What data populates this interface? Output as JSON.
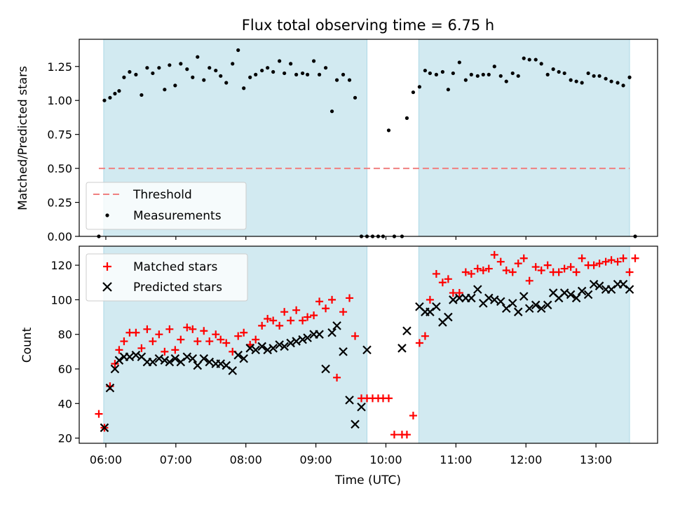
{
  "title": "Flux total observing time = 6.75 h",
  "xlabel": "Time (UTC)",
  "x_ticks": [
    "06:00",
    "07:00",
    "08:00",
    "09:00",
    "10:00",
    "11:00",
    "12:00",
    "13:00"
  ],
  "colors": {
    "shade": "#add8e6",
    "threshold": "#f08080",
    "measurement": "#000000",
    "matched": "#ff0000",
    "predicted": "#000000"
  },
  "chart_data": [
    {
      "type": "scatter",
      "ylabel": "Matched/Predicted stars",
      "xlim": [
        5.62,
        13.88
      ],
      "ylim": [
        0,
        1.45
      ],
      "y_ticks": [
        "0.00",
        "0.25",
        "0.50",
        "0.75",
        "1.00",
        "1.25"
      ],
      "y_tick_values": [
        0,
        0.25,
        0.5,
        0.75,
        1.0,
        1.25
      ],
      "grid": false,
      "legend_position": "bottom-left",
      "shaded_intervals": [
        [
          5.97,
          9.73
        ],
        [
          10.47,
          13.48
        ]
      ],
      "threshold": {
        "name": "Threshold",
        "y": 0.5,
        "x_range": [
          5.9,
          13.48
        ]
      },
      "series": [
        {
          "name": "Measurements",
          "marker": "dot",
          "x": [
            5.9,
            5.98,
            6.06,
            6.13,
            6.19,
            6.26,
            6.34,
            6.43,
            6.51,
            6.59,
            6.67,
            6.76,
            6.84,
            6.91,
            6.99,
            7.07,
            7.16,
            7.24,
            7.31,
            7.4,
            7.48,
            7.57,
            7.64,
            7.72,
            7.81,
            7.89,
            7.97,
            8.06,
            8.14,
            8.23,
            8.31,
            8.39,
            8.48,
            8.55,
            8.64,
            8.72,
            8.81,
            8.88,
            8.97,
            9.05,
            9.14,
            9.23,
            9.3,
            9.39,
            9.48,
            9.56,
            9.65,
            9.73,
            9.81,
            9.89,
            9.96,
            10.04,
            10.12,
            10.23,
            10.3,
            10.39,
            10.48,
            10.56,
            10.63,
            10.72,
            10.81,
            10.89,
            10.96,
            11.05,
            11.14,
            11.22,
            11.31,
            11.39,
            11.47,
            11.55,
            11.64,
            11.72,
            11.81,
            11.89,
            11.97,
            12.05,
            12.14,
            12.22,
            12.31,
            12.39,
            12.47,
            12.55,
            12.64,
            12.72,
            12.8,
            12.89,
            12.97,
            13.05,
            13.14,
            13.22,
            13.31,
            13.39,
            13.48,
            13.56
          ],
          "y": [
            0.0,
            1.0,
            1.02,
            1.05,
            1.07,
            1.17,
            1.21,
            1.19,
            1.04,
            1.24,
            1.2,
            1.24,
            1.08,
            1.26,
            1.11,
            1.27,
            1.23,
            1.17,
            1.32,
            1.15,
            1.24,
            1.22,
            1.18,
            1.13,
            1.27,
            1.37,
            1.09,
            1.17,
            1.19,
            1.22,
            1.24,
            1.21,
            1.29,
            1.2,
            1.27,
            1.19,
            1.2,
            1.19,
            1.29,
            1.19,
            1.24,
            0.92,
            1.15,
            1.19,
            1.15,
            1.02,
            0.0,
            0.0,
            0.0,
            0.0,
            0.0,
            0.78,
            0.0,
            0.0,
            0.87,
            1.06,
            1.1,
            1.22,
            1.2,
            1.19,
            1.21,
            1.08,
            1.2,
            1.28,
            1.15,
            1.19,
            1.18,
            1.19,
            1.19,
            1.25,
            1.18,
            1.14,
            1.2,
            1.18,
            1.31,
            1.3,
            1.3,
            1.27,
            1.19,
            1.23,
            1.21,
            1.2,
            1.15,
            1.14,
            1.13,
            1.2,
            1.18,
            1.18,
            1.16,
            1.14,
            1.13,
            1.11,
            1.17,
            0.0
          ]
        }
      ]
    },
    {
      "type": "scatter",
      "ylabel": "Count",
      "xlim": [
        5.62,
        13.88
      ],
      "ylim": [
        17,
        131
      ],
      "y_ticks": [
        "20",
        "40",
        "60",
        "80",
        "100",
        "120"
      ],
      "y_tick_values": [
        20,
        40,
        60,
        80,
        100,
        120
      ],
      "grid": false,
      "legend_position": "top-left",
      "shaded_intervals": [
        [
          5.97,
          9.73
        ],
        [
          10.47,
          13.48
        ]
      ],
      "series": [
        {
          "name": "Matched stars",
          "marker": "plus",
          "x": [
            5.9,
            5.98,
            6.06,
            6.13,
            6.19,
            6.26,
            6.34,
            6.43,
            6.51,
            6.59,
            6.67,
            6.76,
            6.84,
            6.91,
            6.99,
            7.07,
            7.16,
            7.24,
            7.31,
            7.4,
            7.48,
            7.57,
            7.64,
            7.72,
            7.81,
            7.89,
            7.97,
            8.06,
            8.14,
            8.23,
            8.31,
            8.39,
            8.48,
            8.55,
            8.64,
            8.72,
            8.81,
            8.88,
            8.97,
            9.05,
            9.14,
            9.23,
            9.3,
            9.39,
            9.48,
            9.56,
            9.65,
            9.73,
            9.81,
            9.89,
            9.96,
            10.04,
            10.12,
            10.23,
            10.3,
            10.39,
            10.48,
            10.56,
            10.63,
            10.72,
            10.81,
            10.89,
            10.96,
            11.05,
            11.14,
            11.22,
            11.31,
            11.39,
            11.47,
            11.55,
            11.64,
            11.72,
            11.81,
            11.89,
            11.97,
            12.05,
            12.14,
            12.22,
            12.31,
            12.39,
            12.47,
            12.55,
            12.64,
            12.72,
            12.8,
            12.89,
            12.97,
            13.05,
            13.14,
            13.22,
            13.31,
            13.39,
            13.48,
            13.56
          ],
          "y": [
            34,
            26,
            50,
            63,
            71,
            76,
            81,
            81,
            72,
            83,
            76,
            80,
            70,
            83,
            71,
            77,
            84,
            83,
            76,
            82,
            76,
            80,
            77,
            75,
            70,
            79,
            81,
            74,
            77,
            85,
            89,
            88,
            85,
            93,
            88,
            94,
            88,
            90,
            91,
            99,
            95,
            100,
            55,
            93,
            101,
            79,
            43,
            43,
            43,
            43,
            43,
            43,
            22,
            22,
            22,
            33,
            75,
            79,
            100,
            115,
            110,
            112,
            104,
            104,
            116,
            115,
            118,
            117,
            118,
            126,
            122,
            117,
            116,
            121,
            124,
            111,
            119,
            117,
            120,
            116,
            116,
            118,
            119,
            116,
            124,
            120,
            120,
            121,
            122,
            123,
            122,
            124,
            116,
            124
          ]
        },
        {
          "name": "Predicted stars",
          "marker": "x",
          "x": [
            5.98,
            6.06,
            6.13,
            6.19,
            6.26,
            6.34,
            6.43,
            6.51,
            6.59,
            6.67,
            6.76,
            6.84,
            6.91,
            6.99,
            7.07,
            7.16,
            7.24,
            7.31,
            7.4,
            7.48,
            7.57,
            7.64,
            7.72,
            7.81,
            7.89,
            7.97,
            8.06,
            8.14,
            8.23,
            8.31,
            8.39,
            8.48,
            8.55,
            8.64,
            8.72,
            8.81,
            8.88,
            8.97,
            9.05,
            9.14,
            9.23,
            9.3,
            9.39,
            9.48,
            9.56,
            9.65,
            9.73,
            10.23,
            10.3,
            10.48,
            10.56,
            10.63,
            10.72,
            10.81,
            10.89,
            10.96,
            11.05,
            11.14,
            11.22,
            11.31,
            11.39,
            11.47,
            11.55,
            11.64,
            11.72,
            11.81,
            11.89,
            11.97,
            12.05,
            12.14,
            12.22,
            12.31,
            12.39,
            12.47,
            12.55,
            12.64,
            12.72,
            12.8,
            12.89,
            12.97,
            13.05,
            13.14,
            13.22,
            13.31,
            13.39,
            13.48
          ],
          "y": [
            26,
            49,
            60,
            65,
            67,
            67,
            68,
            67,
            64,
            64,
            66,
            65,
            64,
            66,
            64,
            67,
            66,
            62,
            66,
            64,
            63,
            63,
            62,
            59,
            68,
            66,
            72,
            71,
            73,
            71,
            72,
            74,
            73,
            75,
            76,
            77,
            78,
            80,
            80,
            60,
            81,
            85,
            70,
            42,
            28,
            38,
            71,
            72,
            82,
            96,
            93,
            93,
            96,
            87,
            90,
            100,
            101,
            101,
            101,
            106,
            98,
            101,
            100,
            99,
            95,
            98,
            93,
            102,
            95,
            97,
            95,
            97,
            104,
            101,
            104,
            103,
            101,
            105,
            103,
            109,
            108,
            106,
            106,
            109,
            109,
            106
          ]
        }
      ]
    }
  ]
}
